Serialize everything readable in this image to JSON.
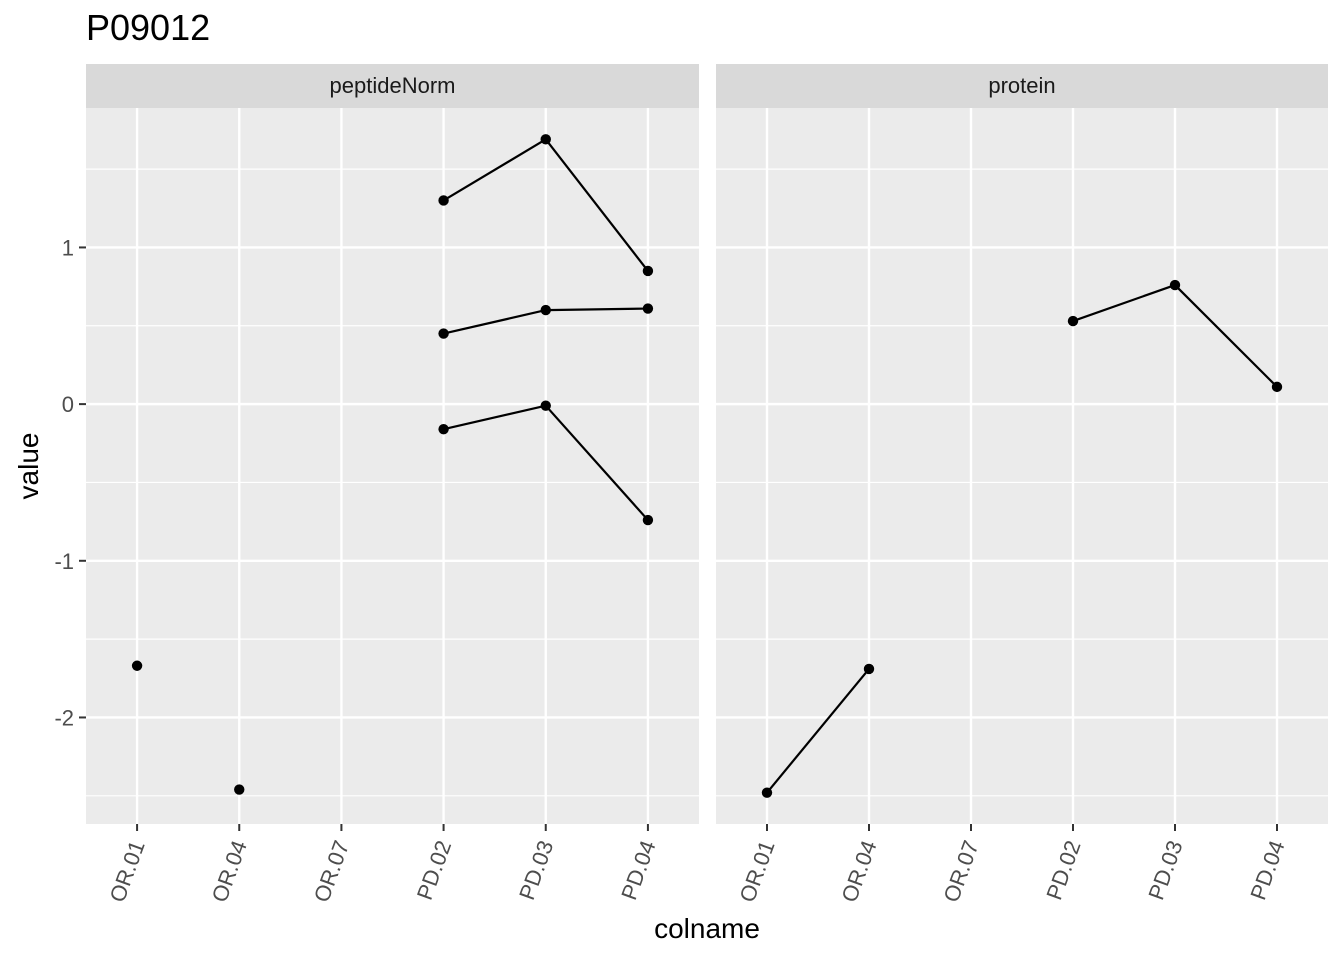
{
  "chart_data": {
    "type": "line",
    "title": "P09012",
    "xlabel": "colname",
    "ylabel": "value",
    "categories": [
      "OR.01",
      "OR.04",
      "OR.07",
      "PD.02",
      "PD.03",
      "PD.04"
    ],
    "ylim": [
      -2.68,
      1.89
    ],
    "y_ticks": [
      -2,
      -1,
      0,
      1
    ],
    "y_tick_labels": [
      "-2",
      "-1",
      "0",
      "1"
    ],
    "grid": true,
    "colors": {
      "panel": "#ebebeb",
      "strip": "#d9d9d9",
      "grid": "#ffffff",
      "line": "#000000",
      "point": "#000000"
    },
    "facets": [
      {
        "label": "peptideNorm",
        "series": [
          {
            "x": [
              "OR.01"
            ],
            "values": [
              -1.67
            ]
          },
          {
            "x": [
              "OR.04"
            ],
            "values": [
              -2.46
            ]
          },
          {
            "x": [
              "PD.02",
              "PD.03",
              "PD.04"
            ],
            "values": [
              1.3,
              1.69,
              0.85
            ]
          },
          {
            "x": [
              "PD.02",
              "PD.03",
              "PD.04"
            ],
            "values": [
              0.45,
              0.6,
              0.61
            ]
          },
          {
            "x": [
              "PD.02",
              "PD.03",
              "PD.04"
            ],
            "values": [
              -0.16,
              -0.01,
              -0.74
            ]
          }
        ]
      },
      {
        "label": "protein",
        "series": [
          {
            "x": [
              "OR.01",
              "OR.04"
            ],
            "values": [
              -2.48,
              -1.69
            ]
          },
          {
            "x": [
              "PD.02",
              "PD.03",
              "PD.04"
            ],
            "values": [
              0.53,
              0.76,
              0.11
            ]
          }
        ]
      }
    ]
  }
}
